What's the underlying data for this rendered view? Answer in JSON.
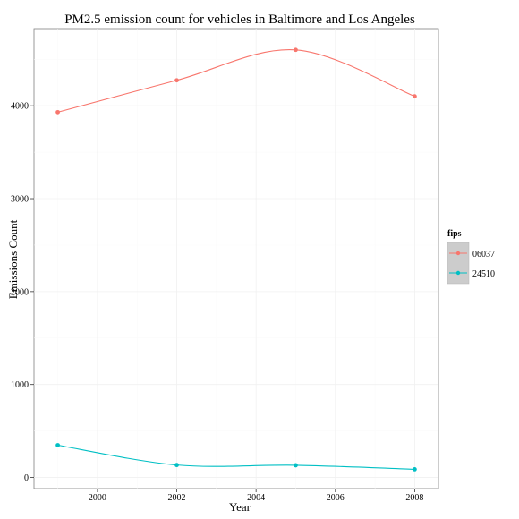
{
  "chart_data": {
    "type": "line",
    "title": "PM2.5 emission count for vehicles in Baltimore and Los Angeles",
    "xlabel": "Year",
    "ylabel": "Emissions Count",
    "x": [
      1999,
      2002,
      2005,
      2008
    ],
    "xlim": [
      1998.4,
      2008.6
    ],
    "ylim": [
      -120,
      4830
    ],
    "x_ticks": [
      2000,
      2002,
      2004,
      2006,
      2008
    ],
    "y_ticks": [
      0,
      1000,
      2000,
      3000,
      4000
    ],
    "grid": true,
    "legend": {
      "title": "fips",
      "position": "right"
    },
    "series": [
      {
        "name": "06037",
        "color": "#F8766D",
        "values": [
          3931,
          4274,
          4601,
          4101
        ]
      },
      {
        "name": "24510",
        "color": "#00BFC4",
        "values": [
          347,
          134,
          131,
          88
        ]
      }
    ]
  }
}
